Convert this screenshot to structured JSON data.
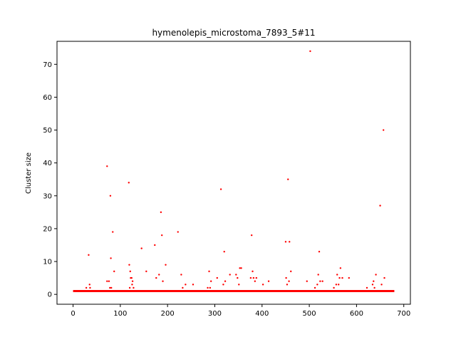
{
  "chart_data": {
    "type": "scatter",
    "title": "hymenolepis_microstoma_7893_5#11",
    "xlabel": "",
    "ylabel": "Cluster size",
    "xlim": [
      -34,
      714
    ],
    "ylim": [
      -3,
      77
    ],
    "xticks": [
      0,
      100,
      200,
      300,
      400,
      500,
      600,
      700
    ],
    "yticks": [
      0,
      10,
      20,
      30,
      40,
      50,
      60,
      70
    ],
    "grid": false,
    "color": "#ff0000",
    "baseline": {
      "y": 1,
      "x_start": 0,
      "x_end": 680
    },
    "points": [
      {
        "x": 28,
        "y": 2
      },
      {
        "x": 33,
        "y": 12
      },
      {
        "x": 35,
        "y": 3
      },
      {
        "x": 36,
        "y": 2
      },
      {
        "x": 72,
        "y": 4
      },
      {
        "x": 72,
        "y": 39
      },
      {
        "x": 76,
        "y": 4
      },
      {
        "x": 78,
        "y": 2
      },
      {
        "x": 79,
        "y": 30
      },
      {
        "x": 80,
        "y": 11
      },
      {
        "x": 81,
        "y": 2
      },
      {
        "x": 84,
        "y": 19
      },
      {
        "x": 87,
        "y": 7
      },
      {
        "x": 118,
        "y": 34
      },
      {
        "x": 119,
        "y": 9
      },
      {
        "x": 120,
        "y": 2
      },
      {
        "x": 121,
        "y": 7
      },
      {
        "x": 122,
        "y": 5
      },
      {
        "x": 124,
        "y": 5
      },
      {
        "x": 125,
        "y": 3
      },
      {
        "x": 126,
        "y": 4
      },
      {
        "x": 128,
        "y": 2
      },
      {
        "x": 145,
        "y": 14
      },
      {
        "x": 155,
        "y": 7
      },
      {
        "x": 173,
        "y": 15
      },
      {
        "x": 176,
        "y": 5
      },
      {
        "x": 182,
        "y": 6
      },
      {
        "x": 186,
        "y": 25
      },
      {
        "x": 188,
        "y": 18
      },
      {
        "x": 190,
        "y": 4
      },
      {
        "x": 196,
        "y": 9
      },
      {
        "x": 222,
        "y": 19
      },
      {
        "x": 229,
        "y": 6
      },
      {
        "x": 232,
        "y": 2
      },
      {
        "x": 238,
        "y": 3
      },
      {
        "x": 254,
        "y": 3
      },
      {
        "x": 285,
        "y": 2
      },
      {
        "x": 288,
        "y": 7
      },
      {
        "x": 290,
        "y": 2
      },
      {
        "x": 292,
        "y": 4
      },
      {
        "x": 305,
        "y": 5
      },
      {
        "x": 313,
        "y": 32
      },
      {
        "x": 318,
        "y": 3
      },
      {
        "x": 320,
        "y": 13
      },
      {
        "x": 322,
        "y": 4
      },
      {
        "x": 332,
        "y": 6
      },
      {
        "x": 345,
        "y": 6
      },
      {
        "x": 348,
        "y": 5
      },
      {
        "x": 351,
        "y": 3
      },
      {
        "x": 353,
        "y": 8
      },
      {
        "x": 356,
        "y": 8
      },
      {
        "x": 376,
        "y": 5
      },
      {
        "x": 378,
        "y": 18
      },
      {
        "x": 380,
        "y": 7
      },
      {
        "x": 382,
        "y": 5
      },
      {
        "x": 385,
        "y": 4
      },
      {
        "x": 388,
        "y": 5
      },
      {
        "x": 402,
        "y": 3
      },
      {
        "x": 414,
        "y": 4
      },
      {
        "x": 450,
        "y": 16
      },
      {
        "x": 451,
        "y": 5
      },
      {
        "x": 453,
        "y": 3
      },
      {
        "x": 455,
        "y": 35
      },
      {
        "x": 457,
        "y": 4
      },
      {
        "x": 458,
        "y": 16
      },
      {
        "x": 461,
        "y": 7
      },
      {
        "x": 495,
        "y": 4
      },
      {
        "x": 502,
        "y": 74
      },
      {
        "x": 512,
        "y": 2
      },
      {
        "x": 517,
        "y": 3
      },
      {
        "x": 519,
        "y": 6
      },
      {
        "x": 521,
        "y": 13
      },
      {
        "x": 523,
        "y": 4
      },
      {
        "x": 528,
        "y": 4
      },
      {
        "x": 552,
        "y": 2
      },
      {
        "x": 557,
        "y": 3
      },
      {
        "x": 559,
        "y": 6
      },
      {
        "x": 562,
        "y": 3
      },
      {
        "x": 564,
        "y": 5
      },
      {
        "x": 566,
        "y": 8
      },
      {
        "x": 570,
        "y": 5
      },
      {
        "x": 584,
        "y": 5
      },
      {
        "x": 622,
        "y": 2
      },
      {
        "x": 634,
        "y": 3
      },
      {
        "x": 636,
        "y": 4
      },
      {
        "x": 638,
        "y": 2
      },
      {
        "x": 641,
        "y": 6
      },
      {
        "x": 650,
        "y": 27
      },
      {
        "x": 653,
        "y": 3
      },
      {
        "x": 657,
        "y": 50
      },
      {
        "x": 659,
        "y": 5
      }
    ]
  }
}
